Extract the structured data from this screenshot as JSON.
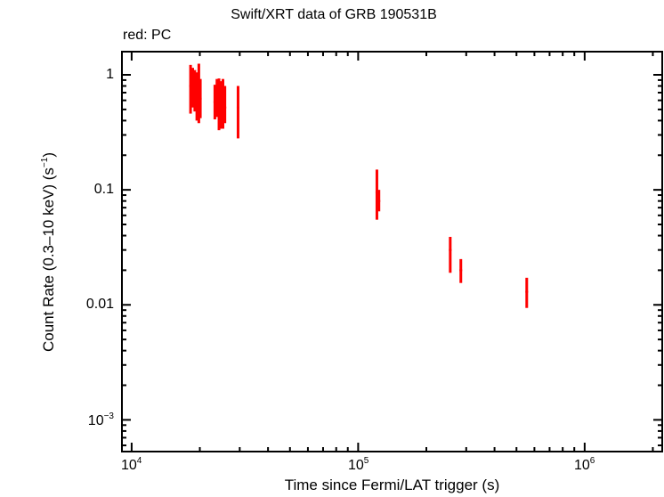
{
  "title": "Swift/XRT data of GRB 190531B",
  "subtitle": "red: PC",
  "colors": {
    "series": "#ff0000",
    "axes": "#000000",
    "background": "#ffffff"
  },
  "chart_data": {
    "type": "scatter",
    "title": "Swift/XRT data of GRB 190531B",
    "subtitle": "red: PC",
    "xlabel": "Time since Fermi/LAT trigger (s)",
    "ylabel": "Count Rate (0.3–10 keV) (s⁻¹)",
    "xscale": "log",
    "yscale": "log",
    "xlim": [
      9060,
      2200000
    ],
    "ylim": [
      0.00053,
      1.59
    ],
    "x_ticks": [
      "10^4",
      "10^5",
      "10^6"
    ],
    "y_ticks": [
      "1",
      "0.1",
      "0.01",
      "10^-3"
    ],
    "grid": false,
    "legend": "none (subtitle 'red: PC' indicates PC mode data in red)",
    "series": [
      {
        "name": "PC",
        "color": "#ff0000",
        "points": [
          {
            "x": 18200,
            "y": 0.8,
            "ylo": 0.46,
            "yhi": 1.22
          },
          {
            "x": 18600,
            "y": 0.72,
            "ylo": 0.52,
            "yhi": 1.15
          },
          {
            "x": 19000,
            "y": 0.65,
            "ylo": 0.48,
            "yhi": 1.1
          },
          {
            "x": 19400,
            "y": 0.7,
            "ylo": 0.4,
            "yhi": 1.05
          },
          {
            "x": 19800,
            "y": 0.78,
            "ylo": 0.38,
            "yhi": 1.25
          },
          {
            "x": 20100,
            "y": 0.62,
            "ylo": 0.42,
            "yhi": 0.92
          },
          {
            "x": 23300,
            "y": 0.58,
            "ylo": 0.41,
            "yhi": 0.82
          },
          {
            "x": 23800,
            "y": 0.62,
            "ylo": 0.43,
            "yhi": 0.92
          },
          {
            "x": 24300,
            "y": 0.58,
            "ylo": 0.33,
            "yhi": 0.93
          },
          {
            "x": 24800,
            "y": 0.55,
            "ylo": 0.34,
            "yhi": 0.88
          },
          {
            "x": 25300,
            "y": 0.55,
            "ylo": 0.34,
            "yhi": 0.92
          },
          {
            "x": 25800,
            "y": 0.52,
            "ylo": 0.38,
            "yhi": 0.8
          },
          {
            "x": 29500,
            "y": 0.52,
            "ylo": 0.28,
            "yhi": 0.8
          },
          {
            "x": 121000,
            "y": 0.095,
            "ylo": 0.055,
            "yhi": 0.15
          },
          {
            "x": 123500,
            "y": 0.08,
            "ylo": 0.065,
            "yhi": 0.1
          },
          {
            "x": 255000,
            "y": 0.03,
            "ylo": 0.019,
            "yhi": 0.039
          },
          {
            "x": 284000,
            "y": 0.02,
            "ylo": 0.0155,
            "yhi": 0.025
          },
          {
            "x": 555000,
            "y": 0.013,
            "ylo": 0.0094,
            "yhi": 0.0172
          }
        ]
      }
    ]
  },
  "axes": {
    "y_tick_labels": [
      {
        "base": "1",
        "exp": ""
      },
      {
        "base": "0.1",
        "exp": ""
      },
      {
        "base": "0.01",
        "exp": ""
      },
      {
        "base": "10",
        "exp": "−3"
      }
    ],
    "x_tick_labels": [
      {
        "base": "10",
        "exp": "4"
      },
      {
        "base": "10",
        "exp": "5"
      },
      {
        "base": "10",
        "exp": "6"
      }
    ],
    "xlabel": "Time since Fermi/LAT trigger (s)",
    "ylabel_main": "Count Rate (0.3–10 keV) (s",
    "ylabel_exp": "−1",
    "ylabel_end": ")"
  }
}
